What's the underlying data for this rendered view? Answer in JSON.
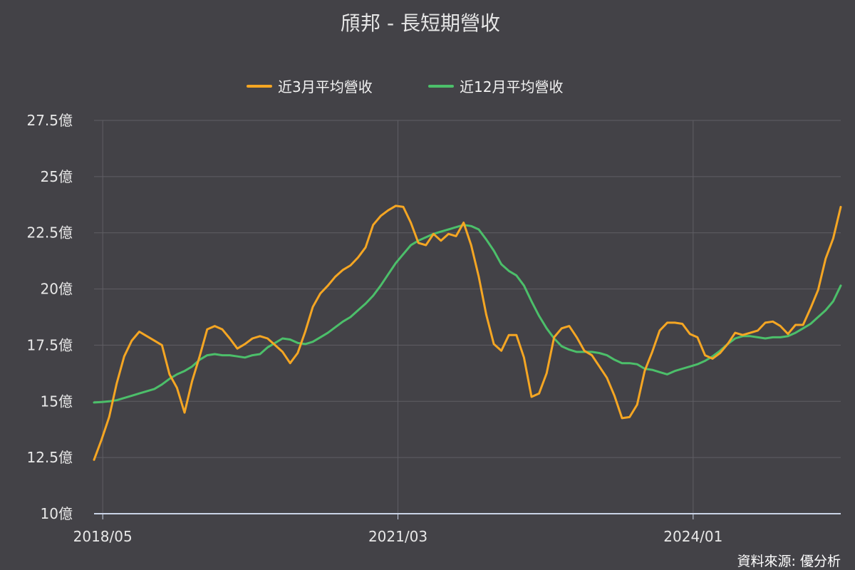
{
  "chart_data": {
    "type": "line",
    "title": "頎邦 - 長短期營收",
    "source": "資料來源: 優分析",
    "y_unit": "億",
    "ylim": [
      10,
      27.5
    ],
    "yticks": [
      "10億",
      "12.5億",
      "15億",
      "17.5億",
      "20億",
      "22.5億",
      "25億",
      "27.5億"
    ],
    "ytick_values": [
      10,
      12.5,
      15,
      17.5,
      20,
      22.5,
      25,
      27.5
    ],
    "xticks": [
      "2018/05",
      "2021/03",
      "2024/01"
    ],
    "x_start": "2018/04",
    "x_end": "2025/06",
    "grid": true,
    "legend_position": "top-center",
    "series": [
      {
        "name": "近3月平均營收",
        "color": "#f5a623",
        "values": [
          12.4,
          13.3,
          14.3,
          15.8,
          17.0,
          17.7,
          18.1,
          17.9,
          17.7,
          17.5,
          16.2,
          15.6,
          14.5,
          15.9,
          17.0,
          18.2,
          18.35,
          18.2,
          17.8,
          17.35,
          17.55,
          17.8,
          17.9,
          17.8,
          17.5,
          17.2,
          16.7,
          17.15,
          18.1,
          19.2,
          19.8,
          20.15,
          20.55,
          20.85,
          21.05,
          21.4,
          21.85,
          22.85,
          23.25,
          23.5,
          23.7,
          23.65,
          22.95,
          22.05,
          21.95,
          22.45,
          22.15,
          22.45,
          22.35,
          22.95,
          21.95,
          20.55,
          18.85,
          17.55,
          17.25,
          17.95,
          17.95,
          16.95,
          15.2,
          15.35,
          16.25,
          17.85,
          18.25,
          18.35,
          17.85,
          17.25,
          17.05,
          16.55,
          16.05,
          15.25,
          14.25,
          14.3,
          14.85,
          16.35,
          17.2,
          18.15,
          18.5,
          18.5,
          18.45,
          18.0,
          17.85,
          17.05,
          16.9,
          17.15,
          17.55,
          18.05,
          17.95,
          18.05,
          18.15,
          18.5,
          18.55,
          18.35,
          18.0,
          18.4,
          18.4,
          19.15,
          19.95,
          21.35,
          22.25,
          23.65
        ]
      },
      {
        "name": "近12月平均營收",
        "color": "#4cbf6a",
        "values": [
          14.95,
          14.97,
          15.0,
          15.05,
          15.15,
          15.25,
          15.35,
          15.45,
          15.55,
          15.75,
          16.0,
          16.2,
          16.35,
          16.55,
          16.85,
          17.05,
          17.1,
          17.05,
          17.05,
          17.0,
          16.95,
          17.05,
          17.1,
          17.4,
          17.6,
          17.8,
          17.75,
          17.6,
          17.55,
          17.65,
          17.85,
          18.05,
          18.3,
          18.55,
          18.75,
          19.05,
          19.35,
          19.7,
          20.15,
          20.65,
          21.15,
          21.55,
          21.95,
          22.15,
          22.3,
          22.45,
          22.55,
          22.65,
          22.75,
          22.85,
          22.8,
          22.65,
          22.2,
          21.7,
          21.1,
          20.8,
          20.6,
          20.15,
          19.45,
          18.8,
          18.25,
          17.8,
          17.45,
          17.3,
          17.2,
          17.2,
          17.2,
          17.15,
          17.05,
          16.85,
          16.7,
          16.7,
          16.65,
          16.45,
          16.4,
          16.3,
          16.2,
          16.35,
          16.45,
          16.55,
          16.65,
          16.8,
          17.0,
          17.25,
          17.55,
          17.8,
          17.9,
          17.9,
          17.85,
          17.8,
          17.85,
          17.85,
          17.9,
          18.05,
          18.25,
          18.45,
          18.75,
          19.05,
          19.45,
          20.15
        ]
      }
    ]
  }
}
